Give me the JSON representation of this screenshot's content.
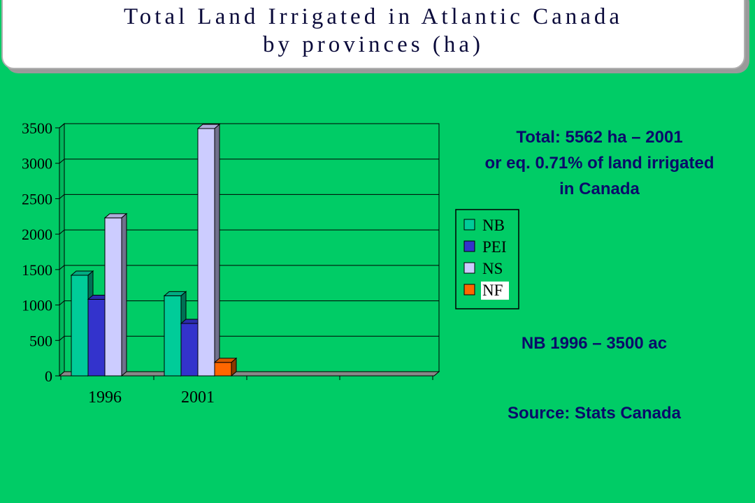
{
  "title": {
    "line1": "Total Land Irrigated in Atlantic Canada",
    "line2": "by provinces (ha)"
  },
  "notes": {
    "total_line1": "Total: 5562 ha – 2001",
    "total_line2": "or eq. 0.71% of land irrigated",
    "total_line3": "in Canada",
    "nb": "NB 1996 – 3500 ac",
    "source": "Source: Stats Canada"
  },
  "colors": {
    "background": "#00cc66",
    "NB": "#00cc99",
    "PEI": "#3333cc",
    "NS": "#ccccff",
    "NF": "#ff6600"
  },
  "chart_data": {
    "type": "bar",
    "categories": [
      "1996",
      "2001"
    ],
    "series": [
      {
        "name": "NB",
        "values": [
          1420,
          1130
        ]
      },
      {
        "name": "PEI",
        "values": [
          1080,
          740
        ]
      },
      {
        "name": "NS",
        "values": [
          2230,
          3490
        ]
      },
      {
        "name": "NF",
        "values": [
          0,
          190
        ]
      }
    ],
    "ylim": [
      0,
      3500
    ],
    "yticks": [
      "0",
      "500",
      "1000",
      "1500",
      "2000",
      "2500",
      "3000",
      "3500"
    ],
    "grid": true,
    "legend": "right",
    "style": "3d"
  }
}
